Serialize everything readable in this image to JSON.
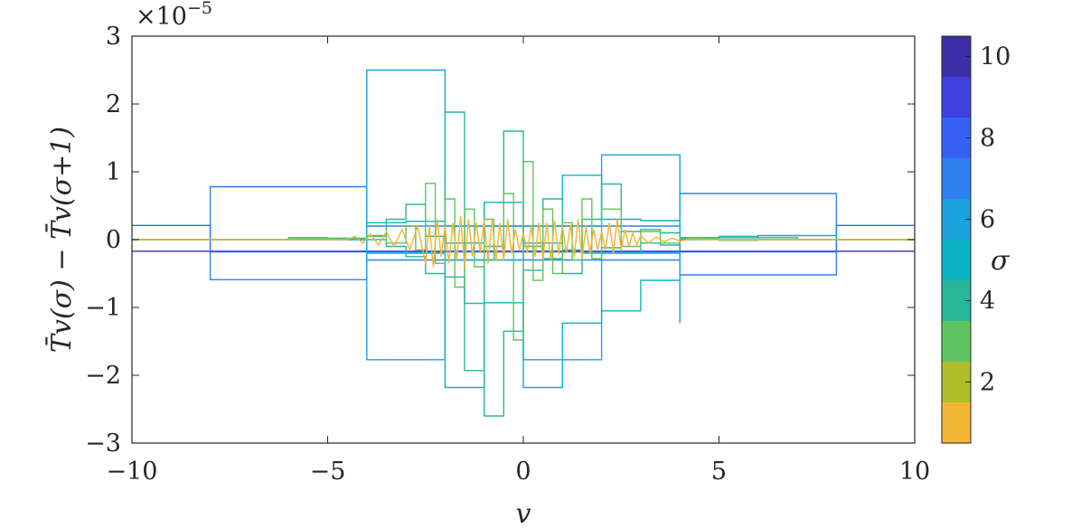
{
  "chart_data": {
    "type": "line",
    "xlabel": "v",
    "ylabel": "T̄v(σ) − T̄v(σ+1)",
    "xlim": [
      -10,
      10
    ],
    "ylim": [
      -3,
      3
    ],
    "xticks": [
      -10,
      -5,
      0,
      5,
      10
    ],
    "yticks": [
      -3,
      -2,
      -1,
      0,
      1,
      2,
      3
    ],
    "xtick_labels": [
      "−10",
      "−5",
      "0",
      "5",
      "10"
    ],
    "ytick_labels": [
      "−3",
      "−2",
      "−1",
      "0",
      "1",
      "2",
      "3"
    ],
    "y_multiplier": "×10",
    "y_multiplier_exp": "−5",
    "grid": false,
    "colorbar": {
      "label": "σ",
      "range": [
        0.5,
        10.5
      ],
      "ticks": [
        2,
        4,
        6,
        8,
        10
      ],
      "tick_labels": [
        "2",
        "4",
        "6",
        "8",
        "10"
      ],
      "levels": [
        {
          "sigma": 1,
          "color": "#f2b634"
        },
        {
          "sigma": 2,
          "color": "#b2bd2c"
        },
        {
          "sigma": 3,
          "color": "#5fc45f"
        },
        {
          "sigma": 4,
          "color": "#27b89a"
        },
        {
          "sigma": 5,
          "color": "#0ab4c4"
        },
        {
          "sigma": 6,
          "color": "#1aa2dc"
        },
        {
          "sigma": 7,
          "color": "#2f80f0"
        },
        {
          "sigma": 8,
          "color": "#3562f5"
        },
        {
          "sigma": 9,
          "color": "#4040de"
        },
        {
          "sigma": 10,
          "color": "#3e2ea6"
        }
      ]
    },
    "series": [
      {
        "sigma": 10,
        "color": "#3e2ea6",
        "x": [
          -10,
          10
        ],
        "y": [
          -0.17,
          -0.17
        ]
      },
      {
        "sigma": 9,
        "color": "#3562f5",
        "x": [
          -10,
          -8,
          -8,
          8,
          8,
          10
        ],
        "y": [
          0.21,
          0.21,
          -0.18,
          -0.18,
          0.21,
          0.21
        ]
      },
      {
        "sigma": 8,
        "color": "#2f80f0",
        "x": [
          -10,
          -8,
          -8,
          -4,
          -4,
          4,
          4,
          8,
          8,
          10
        ],
        "y": [
          0,
          0,
          0.78,
          0.78,
          -0.3,
          -0.3,
          0.68,
          0.68,
          0,
          0
        ]
      },
      {
        "sigma": 8,
        "color": "#2f80f0",
        "x": [
          -8,
          -8,
          -4,
          -4,
          4,
          4,
          8,
          8
        ],
        "y": [
          0,
          -0.59,
          -0.59,
          0.2,
          0.2,
          -0.52,
          -0.52,
          0
        ]
      },
      {
        "sigma": 7,
        "color": "#1aa2dc",
        "x": [
          -10,
          -4,
          -4,
          -2,
          -2,
          0,
          0,
          2,
          2,
          4,
          4,
          10
        ],
        "y": [
          0,
          0,
          2.5,
          2.5,
          -0.3,
          -0.3,
          0.2,
          0.2,
          1.25,
          1.25,
          0,
          0
        ]
      },
      {
        "sigma": 7,
        "color": "#1aa2dc",
        "x": [
          -4,
          -4,
          -2,
          -2,
          0,
          0,
          2,
          2,
          4,
          4
        ],
        "y": [
          0,
          -1.77,
          -1.77,
          0.2,
          0.2,
          -1.77,
          -1.77,
          -0.2,
          -0.2,
          -1.23
        ]
      },
      {
        "sigma": 6,
        "color": "#0ab4c4",
        "x": [
          -10,
          -4,
          -4,
          -3,
          -3,
          -2,
          -2,
          -1,
          -1,
          0,
          0,
          1,
          1,
          2,
          2,
          3,
          3,
          4,
          4,
          6,
          6,
          8,
          8,
          10
        ],
        "y": [
          0,
          0,
          0.25,
          0.25,
          0.27,
          0.27,
          -0.05,
          -0.05,
          0.55,
          0.55,
          -0.05,
          -0.05,
          0.95,
          0.95,
          0.3,
          0.3,
          0.28,
          0.28,
          0.03,
          0.03,
          0.06,
          0.06,
          0,
          0
        ]
      },
      {
        "sigma": 6,
        "color": "#0ab4c4",
        "x": [
          -4,
          -4,
          -3,
          -3,
          -2,
          -2,
          -1,
          -1,
          0,
          0,
          1,
          1,
          2,
          2,
          3,
          3,
          4
        ],
        "y": [
          0,
          -0.2,
          -0.2,
          -0.2,
          -0.2,
          -2.18,
          -2.18,
          -0.93,
          -0.93,
          -2.18,
          -2.18,
          -1.23,
          -1.23,
          -1.05,
          -1.05,
          -0.6,
          -0.6
        ]
      },
      {
        "sigma": 5,
        "color": "#27b89a",
        "x": [
          -10,
          -6,
          -6,
          -4,
          -4,
          -3.5,
          -3.5,
          -3,
          -3,
          -2.5,
          -2.5,
          -2,
          -2,
          -1.5,
          -1.5,
          -1,
          -1,
          -0.5,
          -0.5,
          0,
          0,
          0.5,
          0.5,
          1,
          1,
          1.5,
          1.5,
          2,
          2,
          2.5,
          2.5,
          3,
          3,
          3.5,
          3.5,
          4,
          4,
          5,
          5,
          6,
          6,
          7,
          7,
          10
        ],
        "y": [
          0,
          0,
          0.02,
          0.02,
          0.05,
          0.05,
          0.3,
          0.3,
          0.52,
          0.52,
          0.05,
          0.05,
          1.88,
          1.88,
          -0.94,
          -0.94,
          -0.1,
          -0.1,
          1.6,
          1.6,
          -0.1,
          -0.1,
          0.6,
          0.6,
          -0.15,
          -0.15,
          0.3,
          0.3,
          0.82,
          0.82,
          0.12,
          0.12,
          0.15,
          0.15,
          0.1,
          0.1,
          0.02,
          0.02,
          0.05,
          0.05,
          0.03,
          0.03,
          0,
          0
        ]
      },
      {
        "sigma": 5,
        "color": "#27b89a",
        "x": [
          -4,
          -3.5,
          -3.5,
          -3,
          -3,
          -2.5,
          -2.5,
          -2,
          -2,
          -1.5,
          -1.5,
          -1,
          -1,
          -0.5,
          -0.5,
          0,
          0,
          0.5,
          0.5,
          1,
          1,
          1.5,
          1.5,
          2,
          2,
          2.5,
          2.5,
          3,
          3,
          3.5,
          3.5,
          4
        ],
        "y": [
          0,
          0,
          -0.1,
          -0.1,
          -0.25,
          -0.25,
          -0.5,
          -0.5,
          -0.55,
          -0.55,
          -1.93,
          -1.93,
          -2.6,
          -2.6,
          -1.35,
          -1.35,
          -0.45,
          -0.45,
          -0.28,
          -0.28,
          -0.5,
          -0.5,
          -0.2,
          -0.2,
          -0.12,
          -0.12,
          -0.2,
          -0.2,
          -0.05,
          -0.05,
          -0.08,
          -0.08
        ]
      },
      {
        "sigma": 4,
        "color": "#5fc45f",
        "x": [
          -10,
          -6,
          -6,
          -5,
          -5,
          -4,
          -4,
          -3.5,
          -3.5,
          -3,
          -3,
          -2.75,
          -2.75,
          -2.5,
          -2.5,
          -2.25,
          -2.25,
          -2,
          -2,
          -1.75,
          -1.75,
          -1.5,
          -1.5,
          -1.25,
          -1.25,
          -1,
          -1,
          -0.75,
          -0.75,
          -0.5,
          -0.5,
          -0.25,
          -0.25,
          0,
          0,
          0.25,
          0.25,
          0.5,
          0.5,
          0.75,
          0.75,
          1,
          1,
          1.25,
          1.25,
          1.5,
          1.5,
          1.75,
          1.75,
          2,
          2,
          2.5,
          2.5,
          3,
          3,
          3.5,
          3.5,
          4,
          4,
          5,
          5,
          6,
          6,
          10
        ],
        "y": [
          0,
          0,
          0.03,
          0.03,
          0.01,
          0.01,
          0.06,
          0.06,
          -0.05,
          -0.05,
          0.2,
          0.2,
          -0.15,
          -0.15,
          0.83,
          0.83,
          -0.35,
          -0.35,
          0.6,
          0.6,
          -0.7,
          -0.7,
          0.45,
          0.45,
          -0.4,
          -0.4,
          0.3,
          0.3,
          -0.3,
          -0.3,
          0.68,
          0.68,
          -1.48,
          -1.48,
          1.15,
          1.15,
          -0.6,
          -0.6,
          0.45,
          0.45,
          -0.5,
          -0.5,
          0.25,
          0.25,
          -0.3,
          -0.3,
          0.6,
          0.6,
          -0.28,
          -0.28,
          0.45,
          0.45,
          -0.1,
          -0.1,
          0.12,
          0.12,
          -0.05,
          -0.05,
          0.03,
          0.03,
          -0.01,
          -0.01,
          0,
          0
        ]
      },
      {
        "sigma": 1,
        "color": "#f2b634",
        "x": [
          -10,
          -4.5,
          -4.3,
          -4.1,
          -3.9,
          -3.7,
          -3.5,
          -3.3,
          -3.1,
          -2.9,
          -2.7,
          -2.5,
          -2.4,
          -2.3,
          -2.2,
          -2.1,
          -2.0,
          -1.9,
          -1.8,
          -1.7,
          -1.6,
          -1.5,
          -1.4,
          -1.3,
          -1.2,
          -1.1,
          -1.0,
          -0.9,
          -0.8,
          -0.7,
          -0.6,
          -0.5,
          -0.4,
          -0.3,
          -0.2,
          -0.1,
          0.0,
          0.1,
          0.2,
          0.3,
          0.4,
          0.5,
          0.6,
          0.7,
          0.8,
          0.9,
          1.0,
          1.1,
          1.2,
          1.3,
          1.4,
          1.5,
          1.6,
          1.7,
          1.8,
          1.9,
          2.0,
          2.1,
          2.2,
          2.3,
          2.4,
          2.5,
          2.6,
          2.7,
          2.8,
          2.9,
          3.0,
          3.2,
          3.4,
          3.6,
          3.8,
          4.0,
          4.3,
          4.6,
          10
        ],
        "y": [
          0,
          0,
          0.05,
          -0.05,
          0.08,
          -0.08,
          0.12,
          -0.1,
          0.15,
          -0.15,
          0.2,
          -0.35,
          0.2,
          -0.4,
          0.3,
          -0.25,
          0.2,
          -0.35,
          0.25,
          -0.3,
          0.35,
          -0.4,
          0.3,
          -0.25,
          0.25,
          -0.2,
          0.3,
          -0.35,
          0.3,
          -0.3,
          0.25,
          -0.3,
          0.3,
          -0.2,
          0.15,
          -0.15,
          0.1,
          -0.2,
          0.2,
          -0.25,
          0.25,
          -0.3,
          0.25,
          -0.3,
          0.28,
          -0.22,
          0.2,
          -0.2,
          0.22,
          -0.25,
          0.3,
          -0.28,
          0.2,
          -0.2,
          0.15,
          -0.15,
          0.12,
          -0.15,
          0.25,
          -0.2,
          0.3,
          -0.15,
          0.15,
          -0.1,
          0.1,
          -0.08,
          0.06,
          -0.05,
          0.04,
          -0.03,
          0.02,
          -0.02,
          0.01,
          0,
          0
        ]
      }
    ]
  }
}
